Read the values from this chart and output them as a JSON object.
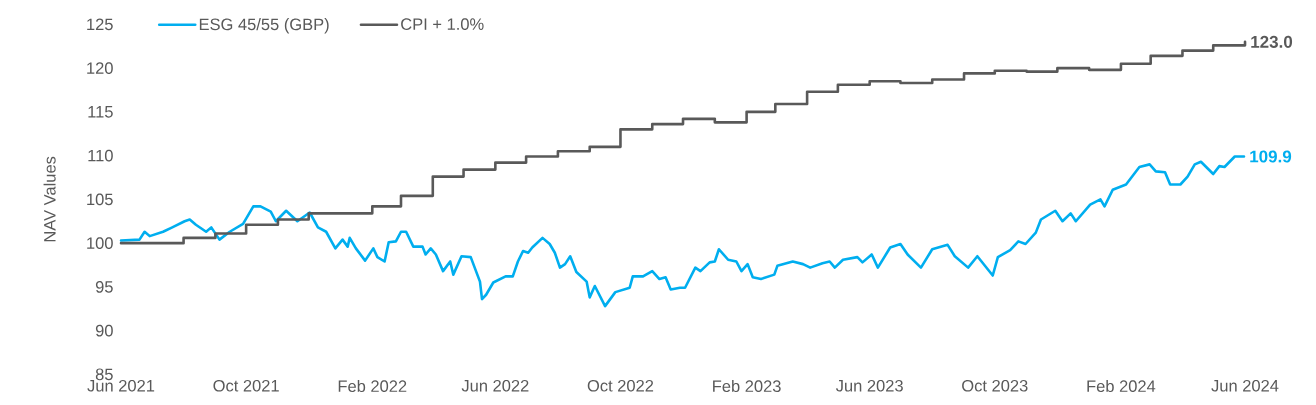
{
  "chart_data": {
    "type": "line",
    "ylabel": "NAV Values",
    "x": [
      "2021-06-01",
      "2021-06-19",
      "2021-06-24",
      "2021-06-29",
      "2021-07-12",
      "2021-07-21",
      "2021-08-02",
      "2021-08-07",
      "2021-08-13",
      "2021-08-23",
      "2021-08-28",
      "2021-09-05",
      "2021-09-15",
      "2021-09-28",
      "2021-10-08",
      "2021-10-15",
      "2021-10-25",
      "2021-10-30",
      "2021-11-09",
      "2021-11-20",
      "2021-12-02",
      "2021-12-10",
      "2021-12-18",
      "2021-12-27",
      "2022-01-03",
      "2022-01-08",
      "2022-01-10",
      "2022-01-16",
      "2022-01-25",
      "2022-02-02",
      "2022-02-06",
      "2022-02-13",
      "2022-02-17",
      "2022-02-24",
      "2022-03-01",
      "2022-03-06",
      "2022-03-13",
      "2022-03-22",
      "2022-03-25",
      "2022-03-30",
      "2022-04-04",
      "2022-04-11",
      "2022-04-18",
      "2022-04-21",
      "2022-04-29",
      "2022-05-08",
      "2022-05-17",
      "2022-05-19",
      "2022-05-23",
      "2022-05-30",
      "2022-06-11",
      "2022-06-18",
      "2022-06-23",
      "2022-06-28",
      "2022-07-03",
      "2022-07-07",
      "2022-07-17",
      "2022-07-24",
      "2022-07-29",
      "2022-08-03",
      "2022-08-08",
      "2022-08-13",
      "2022-08-19",
      "2022-08-29",
      "2022-09-01",
      "2022-09-06",
      "2022-09-16",
      "2022-09-26",
      "2022-10-10",
      "2022-10-13",
      "2022-10-23",
      "2022-11-01",
      "2022-11-08",
      "2022-11-14",
      "2022-11-19",
      "2022-11-28",
      "2022-12-03",
      "2022-12-13",
      "2022-12-18",
      "2022-12-27",
      "2023-01-01",
      "2023-01-05",
      "2023-01-14",
      "2023-01-22",
      "2023-01-27",
      "2023-02-02",
      "2023-02-07",
      "2023-02-15",
      "2023-02-28",
      "2023-03-03",
      "2023-03-18",
      "2023-03-28",
      "2023-04-04",
      "2023-04-16",
      "2023-04-23",
      "2023-04-28",
      "2023-05-06",
      "2023-05-20",
      "2023-05-25",
      "2023-06-03",
      "2023-06-09",
      "2023-06-21",
      "2023-07-01",
      "2023-07-08",
      "2023-07-21",
      "2023-08-01",
      "2023-08-16",
      "2023-08-23",
      "2023-09-05",
      "2023-09-14",
      "2023-09-29",
      "2023-10-04",
      "2023-10-16",
      "2023-10-24",
      "2023-10-31",
      "2023-11-10",
      "2023-11-15",
      "2023-11-29",
      "2023-12-06",
      "2023-12-14",
      "2023-12-19",
      "2024-01-02",
      "2024-01-12",
      "2024-01-16",
      "2024-01-24",
      "2024-02-06",
      "2024-02-19",
      "2024-02-29",
      "2024-03-06",
      "2024-03-15",
      "2024-03-20",
      "2024-03-30",
      "2024-04-06",
      "2024-04-13",
      "2024-04-19",
      "2024-05-01",
      "2024-05-07",
      "2024-05-12",
      "2024-05-22",
      "2024-05-31"
    ],
    "series": [
      {
        "name": "ESG 45/55 (GBP)",
        "color": "#00aeef",
        "values": [
          100.3,
          100.4,
          101.3,
          100.8,
          101.3,
          101.8,
          102.5,
          102.7,
          102.1,
          101.3,
          101.8,
          100.4,
          101.3,
          102.2,
          104.2,
          104.2,
          103.6,
          102.5,
          103.7,
          102.5,
          103.5,
          101.8,
          101.3,
          99.4,
          100.4,
          99.6,
          100.6,
          99.4,
          98.0,
          99.4,
          98.4,
          97.9,
          100.1,
          100.2,
          101.3,
          101.3,
          99.6,
          99.6,
          98.7,
          99.4,
          98.7,
          96.8,
          97.9,
          96.4,
          98.5,
          98.4,
          95.6,
          93.6,
          94.1,
          95.5,
          96.2,
          96.2,
          97.9,
          99.1,
          98.9,
          99.5,
          100.6,
          99.9,
          98.9,
          97.2,
          97.6,
          98.5,
          96.7,
          95.6,
          93.8,
          95.1,
          92.8,
          94.4,
          94.9,
          96.2,
          96.2,
          96.8,
          95.9,
          96.1,
          94.7,
          94.9,
          94.9,
          97.2,
          96.8,
          97.8,
          97.9,
          99.3,
          98.1,
          97.9,
          96.8,
          97.6,
          96.1,
          95.9,
          96.4,
          97.4,
          97.9,
          97.6,
          97.2,
          97.7,
          97.9,
          97.2,
          98.1,
          98.4,
          97.8,
          98.7,
          97.2,
          99.5,
          99.9,
          98.7,
          97.2,
          99.3,
          99.8,
          98.5,
          97.2,
          98.5,
          96.3,
          98.4,
          99.2,
          100.2,
          99.9,
          101.2,
          102.7,
          103.7,
          102.5,
          103.4,
          102.5,
          104.4,
          105.0,
          104.2,
          106.1,
          106.7,
          108.7,
          109.0,
          108.2,
          108.1,
          106.7,
          106.7,
          107.6,
          109.0,
          109.3,
          107.9,
          108.8,
          108.7,
          109.9,
          109.9
        ]
      },
      {
        "name": "CPI + 1.0%",
        "color": "#595959",
        "type": "step",
        "x": [
          "2021-06",
          "2021-07",
          "2021-08",
          "2021-09",
          "2021-10",
          "2021-11",
          "2021-12",
          "2022-01",
          "2022-02",
          "2022-03",
          "2022-04",
          "2022-05",
          "2022-06",
          "2022-07",
          "2022-08",
          "2022-09",
          "2022-10",
          "2022-11",
          "2022-12",
          "2023-01",
          "2023-02",
          "2023-03",
          "2023-04",
          "2023-05",
          "2023-06",
          "2023-07",
          "2023-08",
          "2023-09",
          "2023-10",
          "2023-11",
          "2023-12",
          "2024-01",
          "2024-02",
          "2024-03",
          "2024-04",
          "2024-05",
          "2024-06"
        ],
        "values": [
          100.0,
          100.0,
          100.6,
          101.1,
          102.1,
          102.7,
          103.4,
          103.4,
          104.2,
          105.4,
          107.6,
          108.4,
          109.2,
          109.9,
          110.5,
          111.0,
          113.0,
          113.6,
          114.2,
          113.8,
          115.0,
          115.9,
          117.3,
          118.1,
          118.5,
          118.3,
          118.7,
          119.4,
          119.7,
          119.6,
          120.0,
          119.8,
          120.5,
          121.4,
          122.0,
          122.6,
          123.0
        ]
      }
    ],
    "annotations": [
      {
        "text": "109.9",
        "x": "2024-05-31",
        "y": 109.9
      },
      {
        "text": "123.0",
        "x": "2024-06",
        "y": 123.0
      }
    ],
    "xlim": [
      "2021-06-01",
      "2024-06-01"
    ],
    "xticks": [
      {
        "value": "2021-06",
        "label": "Jun 2021"
      },
      {
        "value": "2021-10",
        "label": "Oct 2021"
      },
      {
        "value": "2022-02",
        "label": "Feb 2022"
      },
      {
        "value": "2022-06",
        "label": "Jun 2022"
      },
      {
        "value": "2022-10",
        "label": "Oct 2022"
      },
      {
        "value": "2023-02",
        "label": "Feb 2023"
      },
      {
        "value": "2023-06",
        "label": "Jun 2023"
      },
      {
        "value": "2023-10",
        "label": "Oct 2023"
      },
      {
        "value": "2024-02",
        "label": "Feb 2024"
      },
      {
        "value": "2024-06",
        "label": "Jun 2024"
      }
    ],
    "ylim": [
      85,
      125
    ],
    "yticks": [
      85,
      90,
      95,
      100,
      105,
      110,
      115,
      120,
      125
    ],
    "legend": "top left",
    "grid": false,
    "marker": "none",
    "line_style": "solid"
  }
}
